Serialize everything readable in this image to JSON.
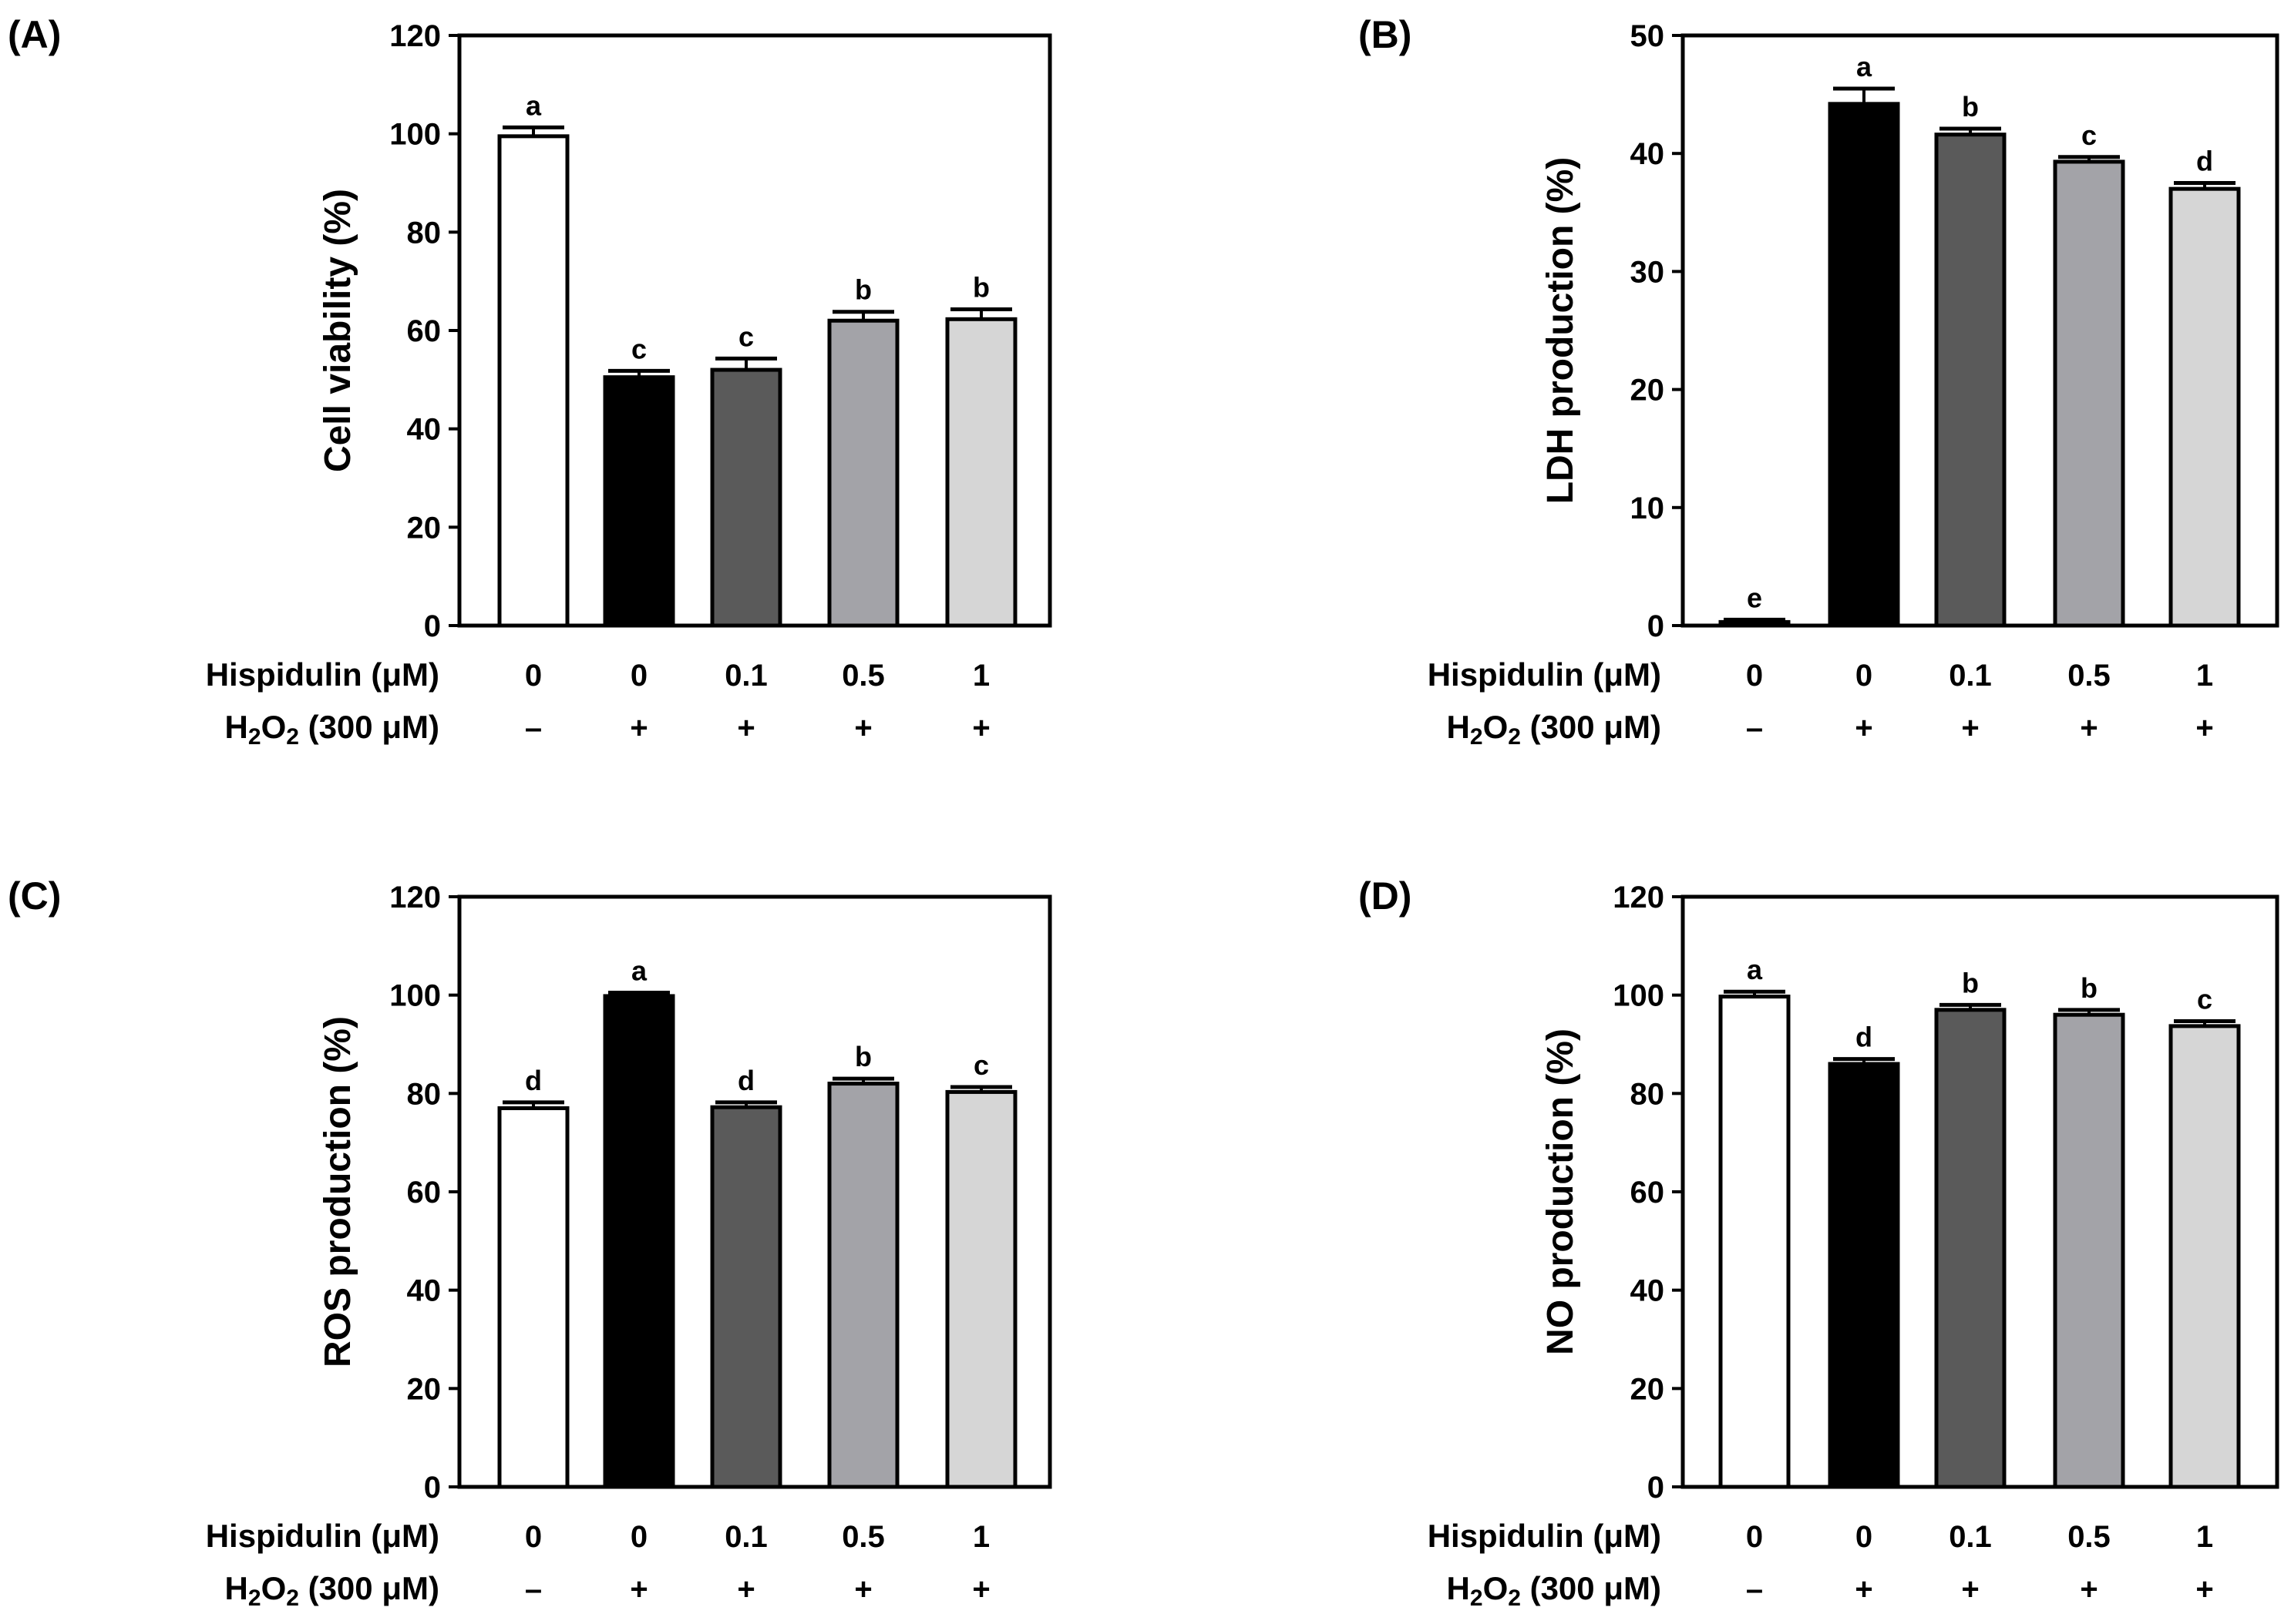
{
  "figure": {
    "row_labels": {
      "hispidulin": "Hispidulin (μM)",
      "h2o2_prefix": "H",
      "h2o2_sub1": "2",
      "h2o2_mid": "O",
      "h2o2_sub2": "2",
      "h2o2_suffix": " (300 μM)"
    },
    "colors": {
      "bar_fills": [
        "#ffffff",
        "#000000",
        "#5a5a5a",
        "#a3a3a8",
        "#d6d6d6"
      ],
      "stroke": "#000000"
    }
  },
  "chart_data": [
    {
      "panel": "(A)",
      "type": "bar",
      "ylabel": "Cell viability (%)",
      "ylim": [
        0,
        120
      ],
      "yticks": [
        0,
        20,
        40,
        60,
        80,
        100,
        120
      ],
      "categories_hispidulin": [
        "0",
        "0",
        "0.1",
        "0.5",
        "1"
      ],
      "categories_h2o2": [
        "–",
        "+",
        "+",
        "+",
        "+"
      ],
      "values": [
        99.5,
        50.5,
        52.0,
        62.0,
        62.3
      ],
      "errors": [
        1.8,
        1.3,
        2.3,
        1.8,
        2.0
      ],
      "significance": [
        "a",
        "c",
        "c",
        "b",
        "b"
      ]
    },
    {
      "panel": "(B)",
      "type": "bar",
      "ylabel": "LDH production (%)",
      "ylim": [
        0,
        50
      ],
      "yticks": [
        0,
        10,
        20,
        30,
        40,
        50
      ],
      "categories_hispidulin": [
        "0",
        "0",
        "0.1",
        "0.5",
        "1"
      ],
      "categories_h2o2": [
        "–",
        "+",
        "+",
        "+",
        "+"
      ],
      "values": [
        0.3,
        44.2,
        41.6,
        39.3,
        37.0
      ],
      "errors": [
        0.2,
        1.3,
        0.5,
        0.4,
        0.5
      ],
      "significance": [
        "e",
        "a",
        "b",
        "c",
        "d"
      ]
    },
    {
      "panel": "(C)",
      "type": "bar",
      "ylabel": "ROS production (%)",
      "ylim": [
        0,
        120
      ],
      "yticks": [
        0,
        20,
        40,
        60,
        80,
        100,
        120
      ],
      "categories_hispidulin": [
        "0",
        "0",
        "0.1",
        "0.5",
        "1"
      ],
      "categories_h2o2": [
        "–",
        "+",
        "+",
        "+",
        "+"
      ],
      "values": [
        77.0,
        99.8,
        77.2,
        82.0,
        80.3
      ],
      "errors": [
        1.2,
        0.7,
        1.0,
        1.0,
        1.0
      ],
      "significance": [
        "d",
        "a",
        "d",
        "b",
        "c"
      ]
    },
    {
      "panel": "(D)",
      "type": "bar",
      "ylabel": "NO production (%)",
      "ylim": [
        0,
        120
      ],
      "yticks": [
        0,
        20,
        40,
        60,
        80,
        100,
        120
      ],
      "categories_hispidulin": [
        "0",
        "0",
        "0.1",
        "0.5",
        "1"
      ],
      "categories_h2o2": [
        "–",
        "+",
        "+",
        "+",
        "+"
      ],
      "values": [
        99.7,
        86.0,
        97.0,
        96.0,
        93.7
      ],
      "errors": [
        1.0,
        1.0,
        1.0,
        1.0,
        1.0
      ],
      "significance": [
        "a",
        "d",
        "b",
        "b",
        "c"
      ]
    }
  ]
}
